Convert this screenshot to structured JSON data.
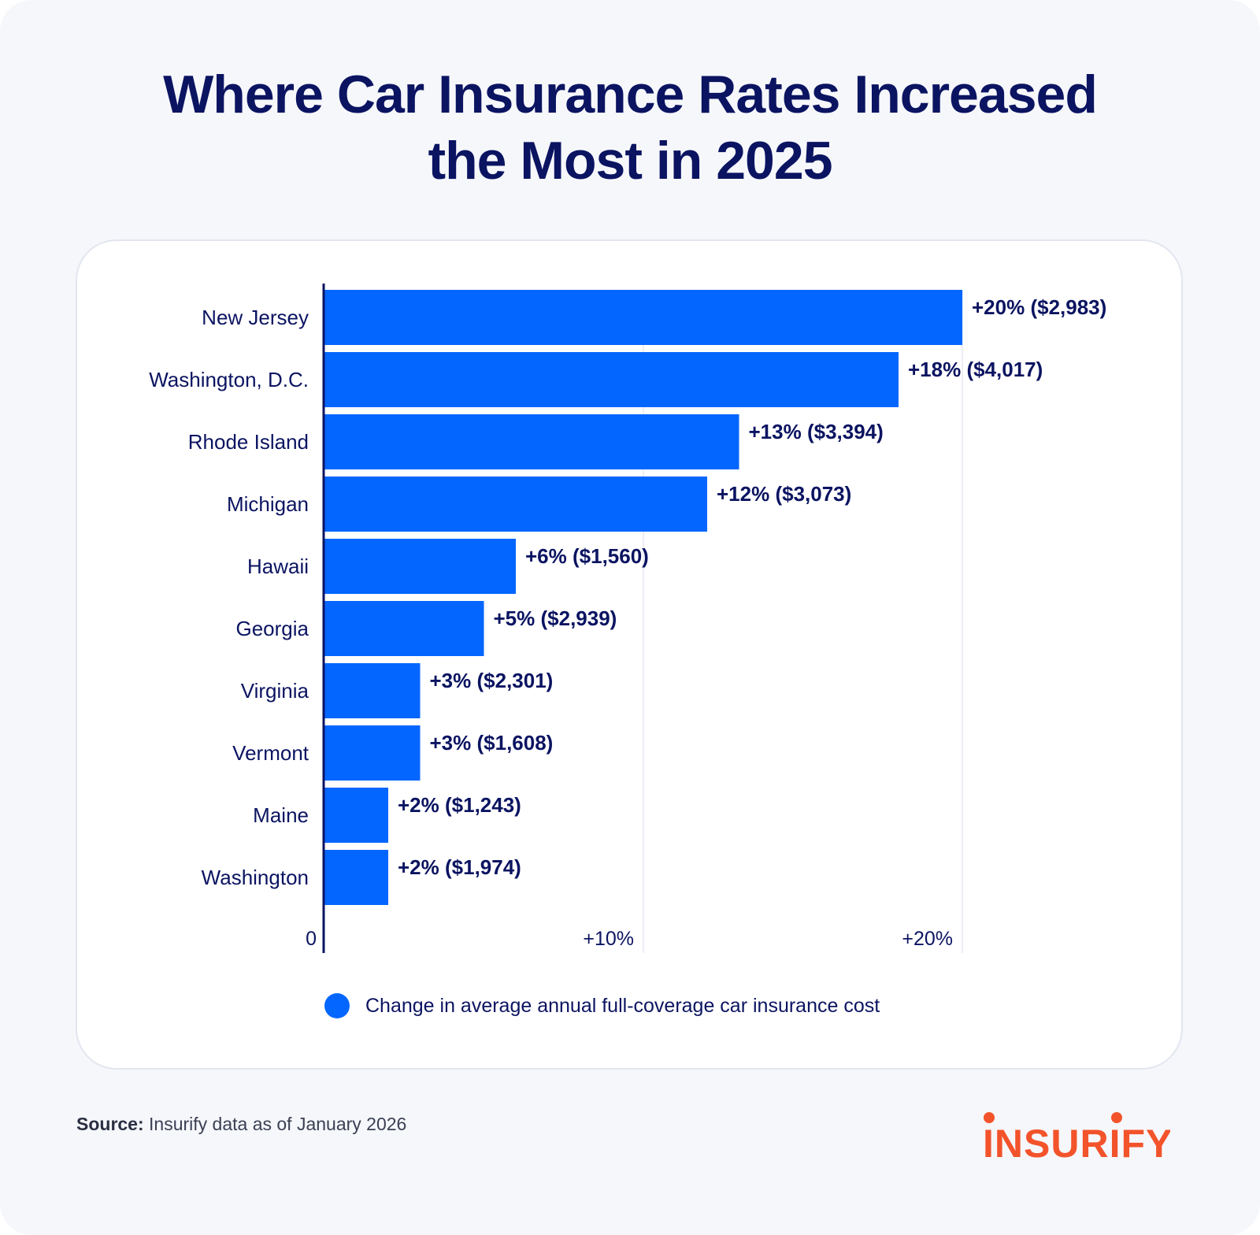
{
  "title_line1": "Where Car Insurance Rates Increased",
  "title_line2": "the Most in 2025",
  "colors": {
    "bar": "#0366ff",
    "title": "#0b1461",
    "logo": "#f3532b"
  },
  "chart_data": {
    "type": "bar",
    "orientation": "horizontal",
    "categories": [
      "New Jersey",
      "Washington, D.C.",
      "Rhode Island",
      "Michigan",
      "Hawaii",
      "Georgia",
      "Virginia",
      "Vermont",
      "Maine",
      "Washington"
    ],
    "values": [
      20,
      18,
      13,
      12,
      6,
      5,
      3,
      3,
      2,
      2
    ],
    "data_labels": [
      "+20% ($2,983)",
      "+18% ($4,017)",
      "+13% ($3,394)",
      "+12% ($3,073)",
      "+6% ($1,560)",
      "+5% ($2,939)",
      "+3% ($2,301)",
      "+3% ($1,608)",
      "+2% ($1,243)",
      "+2% ($1,974)"
    ],
    "xlim": [
      0,
      20
    ],
    "ticks": [
      0,
      10,
      20
    ],
    "tick_labels": [
      "0",
      "+10%",
      "+20%"
    ],
    "grid": true,
    "legend_position": "bottom",
    "series": [
      {
        "name": "Change in average annual full-coverage car insurance cost",
        "values": [
          20,
          18,
          13,
          12,
          6,
          5,
          3,
          3,
          2,
          2
        ]
      }
    ]
  },
  "legend_label": "Change in average annual full-coverage car insurance cost",
  "source_label": "Source:",
  "source_text": " Insurify data as of January 2026",
  "logo_text": "INSURIFY"
}
